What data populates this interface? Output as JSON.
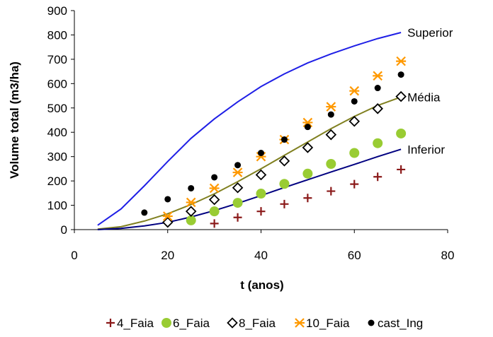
{
  "chart_data": {
    "type": "scatter",
    "xlabel": "t (anos)",
    "ylabel": "Volume total (m3/ha)",
    "xlim": [
      0,
      80
    ],
    "ylim": [
      0,
      900
    ],
    "x_ticks": [
      0,
      20,
      40,
      60,
      80
    ],
    "y_ticks": [
      0,
      100,
      200,
      300,
      400,
      500,
      600,
      700,
      800,
      900
    ],
    "grid": false,
    "legend_position": "bottom",
    "curves": [
      {
        "label": "Superior",
        "color": "#1F1FE6",
        "x": [
          5,
          10,
          15,
          20,
          25,
          30,
          35,
          40,
          45,
          50,
          55,
          60,
          65,
          70
        ],
        "y": [
          18,
          85,
          180,
          280,
          375,
          455,
          525,
          588,
          640,
          685,
          722,
          755,
          785,
          810
        ]
      },
      {
        "label": "Média",
        "color": "#808020",
        "x": [
          5,
          10,
          15,
          20,
          25,
          30,
          35,
          40,
          45,
          50,
          55,
          60,
          65,
          70
        ],
        "y": [
          2,
          12,
          35,
          65,
          103,
          147,
          197,
          250,
          305,
          360,
          415,
          465,
          510,
          545
        ]
      },
      {
        "label": "Inferior",
        "color": "#000080",
        "x": [
          5,
          10,
          15,
          20,
          25,
          30,
          35,
          40,
          45,
          50,
          55,
          60,
          65,
          70
        ],
        "y": [
          0,
          5,
          15,
          30,
          52,
          78,
          108,
          140,
          173,
          205,
          237,
          268,
          300,
          330
        ]
      }
    ],
    "series": [
      {
        "name": "4_Faia",
        "marker": "plus",
        "color": "#8B1A1A",
        "x": [
          30,
          35,
          40,
          45,
          50,
          55,
          60,
          65,
          70
        ],
        "y": [
          25,
          50,
          75,
          105,
          130,
          158,
          187,
          217,
          247
        ]
      },
      {
        "name": "6_Faia",
        "marker": "dot-large",
        "color": "#99CC33",
        "x": [
          25,
          30,
          35,
          40,
          45,
          50,
          55,
          60,
          65,
          70
        ],
        "y": [
          38,
          75,
          110,
          148,
          188,
          230,
          270,
          315,
          355,
          395
        ]
      },
      {
        "name": "8_Faia",
        "marker": "diamond-open",
        "color": "#000000",
        "x": [
          20,
          25,
          30,
          35,
          40,
          45,
          50,
          55,
          60,
          65,
          70
        ],
        "y": [
          30,
          75,
          123,
          172,
          225,
          282,
          337,
          390,
          445,
          497,
          547
        ]
      },
      {
        "name": "10_Faia",
        "marker": "asterisk",
        "color": "#FF9900",
        "x": [
          20,
          25,
          30,
          35,
          40,
          45,
          50,
          55,
          60,
          65,
          70
        ],
        "y": [
          55,
          112,
          170,
          235,
          300,
          370,
          440,
          505,
          570,
          632,
          692
        ]
      },
      {
        "name": "cast_Ing",
        "marker": "dot-small",
        "color": "#000000",
        "x": [
          15,
          20,
          25,
          30,
          35,
          40,
          45,
          50,
          55,
          60,
          65,
          70
        ],
        "y": [
          70,
          125,
          170,
          215,
          265,
          315,
          370,
          422,
          473,
          527,
          582,
          637
        ]
      }
    ]
  }
}
